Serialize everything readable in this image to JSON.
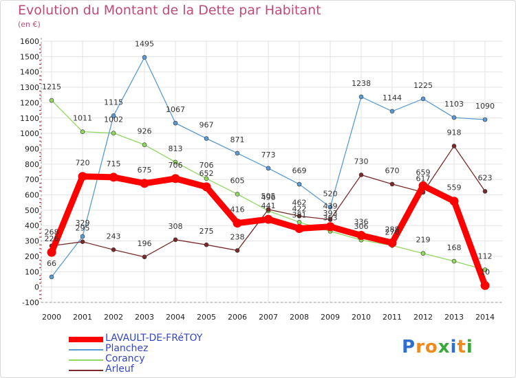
{
  "title": "Evolution du Montant de la Dette par Habitant",
  "subtitle": "(en €)",
  "logo": {
    "text": "Proxiti",
    "letters": [
      "P",
      "r",
      "o",
      "x",
      "i",
      "t",
      "i"
    ],
    "colors": [
      "#2f6fd0",
      "#f08a1c",
      "#f08a1c",
      "#3aa73a",
      "#2f6fd0",
      "#f08a1c",
      "#3aa73a"
    ]
  },
  "chart_data": {
    "type": "line",
    "x": [
      "2000",
      "2001",
      "2002",
      "2003",
      "2004",
      "2005",
      "2006",
      "2007",
      "2008",
      "2009",
      "2010",
      "2011",
      "2012",
      "2013",
      "2014"
    ],
    "yticks": [
      "1600",
      "1500",
      "1400",
      "1300",
      "1200",
      "1100",
      "1000",
      "900",
      "800",
      "700",
      "600",
      "500",
      "400",
      "300",
      "200",
      "100",
      "0",
      "-100"
    ],
    "ylim": [
      -100,
      1600
    ],
    "grid": true,
    "legend_position": "bottom-left",
    "series": [
      {
        "name": "LAVAULT-DE-FRéTOY",
        "color": "#ff0000",
        "values": [
          226,
          720,
          715,
          675,
          706,
          652,
          416,
          441,
          381,
          393,
          336,
          288,
          659,
          559,
          10
        ],
        "labels": [
          "226",
          "720",
          "715",
          "675",
          "706",
          "652",
          "416",
          "441",
          "381",
          "393",
          "336",
          "288",
          "659",
          "559",
          "10"
        ]
      },
      {
        "name": "Planchez",
        "color": "#5a9bd4",
        "values": [
          66,
          329,
          1115,
          1495,
          1067,
          967,
          871,
          773,
          669,
          520,
          1238,
          1144,
          1225,
          1103,
          1090
        ],
        "labels": [
          "66",
          "329",
          "1115",
          "1495",
          "1067",
          "967",
          "871",
          "773",
          "669",
          "520",
          "1238",
          "1144",
          "1225",
          "1103",
          "1090"
        ]
      },
      {
        "name": "Corancy",
        "color": "#90d860",
        "values": [
          1215,
          1011,
          1002,
          926,
          813,
          706,
          605,
          496,
          422,
          363,
          306,
          270,
          219,
          168,
          112
        ],
        "labels": [
          "1215",
          "1011",
          "1002",
          "926",
          "813",
          "706",
          "605",
          "496",
          "422",
          "363",
          "306",
          "270",
          "219",
          "168",
          "112"
        ]
      },
      {
        "name": "Arleuf",
        "color": "#7a2a2a",
        "values": [
          268,
          295,
          243,
          196,
          308,
          275,
          238,
          505,
          462,
          439,
          730,
          670,
          617,
          918,
          623
        ],
        "labels": [
          "268",
          "295",
          "243",
          "196",
          "308",
          "275",
          "238",
          "505",
          "462",
          "439",
          "730",
          "670",
          "617",
          "918",
          "623"
        ]
      }
    ]
  }
}
